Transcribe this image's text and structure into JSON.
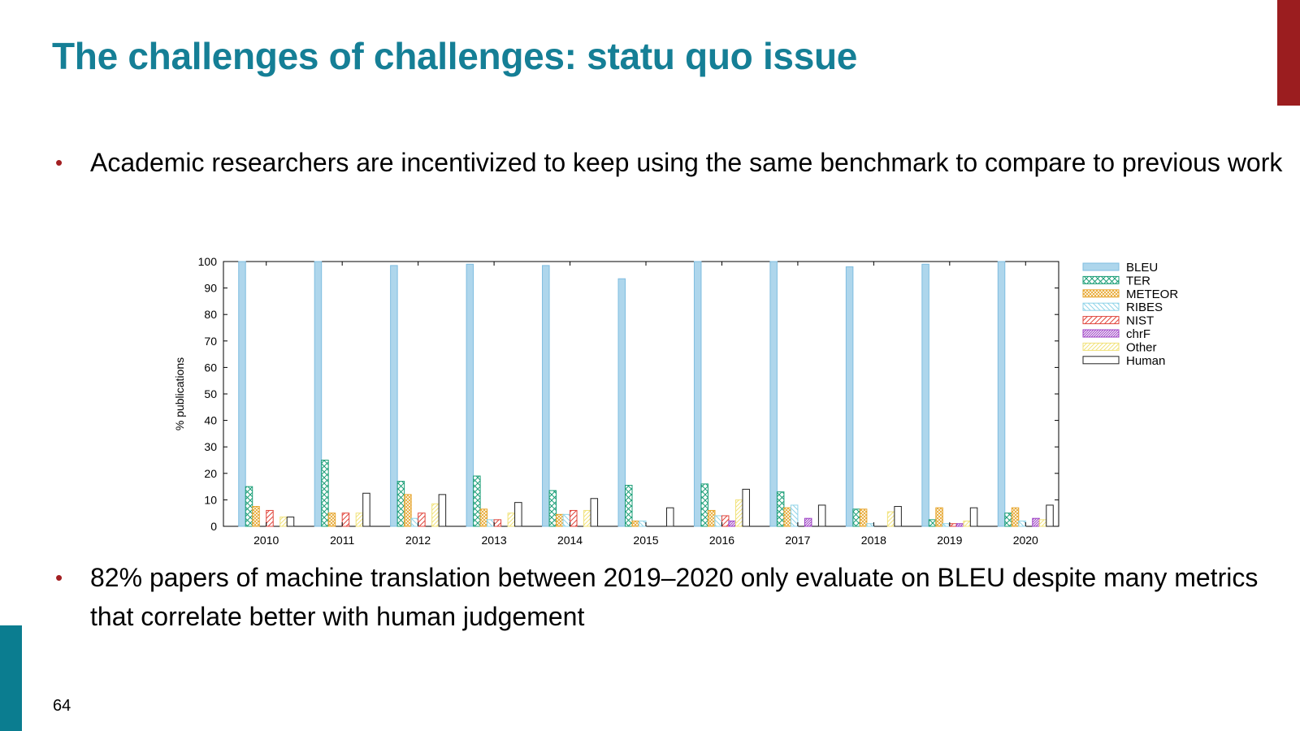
{
  "slide": {
    "title": "The challenges of challenges: statu quo issue",
    "bullets": [
      "Academic researchers are incentivized to keep using the same benchmark to compare to previous work",
      "82% papers of machine translation between 2019–2020 only evaluate on BLEU despite many metrics that correlate better with human judgement"
    ],
    "bullet_symbol": "•",
    "page_number": "64",
    "colors": {
      "title": "#157f96",
      "bullet": "#a31f22",
      "corner_bar": "#9b1d1f",
      "side_bar": "#0b7d90"
    }
  },
  "chart_data": {
    "type": "bar",
    "title": "",
    "xlabel": "",
    "ylabel": "% publications",
    "ylim": [
      0,
      100
    ],
    "yticks": [
      0,
      10,
      20,
      30,
      40,
      50,
      60,
      70,
      80,
      90,
      100
    ],
    "grid": false,
    "legend_position": "right",
    "categories": [
      "2010",
      "2011",
      "2012",
      "2013",
      "2014",
      "2015",
      "2016",
      "2017",
      "2018",
      "2019",
      "2020"
    ],
    "series": [
      {
        "name": "BLEU",
        "color": "#7fbde0",
        "fill": "#aed6ec",
        "pattern": "solid",
        "values": [
          100,
          100,
          98.5,
          99,
          98.5,
          93.5,
          100,
          100,
          98,
          99,
          100
        ]
      },
      {
        "name": "TER",
        "color": "#1b9e77",
        "pattern": "crosshatch",
        "values": [
          15,
          25,
          17,
          19,
          13.5,
          15.5,
          16,
          13,
          6.5,
          2.5,
          5
        ]
      },
      {
        "name": "METEOR",
        "color": "#e6a42a",
        "pattern": "dense-crosshatch",
        "values": [
          7.5,
          5,
          12,
          6.5,
          4.5,
          2,
          6,
          7,
          6.5,
          7,
          7
        ]
      },
      {
        "name": "RIBES",
        "color": "#8fd3e8",
        "pattern": "diagonal-left",
        "values": [
          0,
          0,
          3,
          2.5,
          4.5,
          2,
          4,
          8,
          1,
          1,
          2
        ]
      },
      {
        "name": "NIST",
        "color": "#e0453c",
        "pattern": "diagonal-right",
        "values": [
          6,
          5,
          5,
          2.5,
          6,
          0,
          4,
          0,
          0,
          1,
          0
        ]
      },
      {
        "name": "chrF",
        "color": "#9c3fc4",
        "pattern": "dense-diagonal",
        "values": [
          0,
          0,
          0,
          0,
          0,
          0,
          2,
          3,
          0,
          1,
          3
        ]
      },
      {
        "name": "Other",
        "color": "#f1e27a",
        "pattern": "diagonal-light",
        "values": [
          3.5,
          5,
          8.5,
          5,
          6,
          0,
          10,
          0,
          5.5,
          2,
          2.5
        ]
      },
      {
        "name": "Human",
        "color": "#222222",
        "fill": "#ffffff",
        "pattern": "solid",
        "values": [
          3.5,
          12.5,
          12,
          9,
          10.5,
          7,
          14,
          8,
          7.5,
          7,
          8
        ]
      }
    ]
  }
}
